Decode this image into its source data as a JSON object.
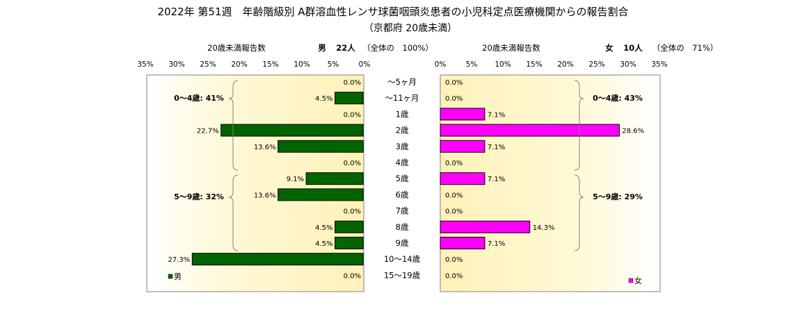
{
  "title": "2022年 第51週　年齢階級別 A群溶血性レンサ球菌咽頭炎患者の小児科定点医療機関からの報告割合",
  "subtitle": "（京都府 20歳未満）",
  "male_header": {
    "report_label": "20歳未満報告数",
    "sex": "男",
    "count": "22人",
    "share": "（全体の　100%）"
  },
  "female_header": {
    "report_label": "20歳未満報告数",
    "sex": "女",
    "count": "10人",
    "share": "（全体の　71%）"
  },
  "male_groups": [
    {
      "label": "0～4歳: 41%"
    },
    {
      "label": "5～9歳: 32%"
    }
  ],
  "female_groups": [
    {
      "label": "0～4歳: 43%"
    },
    {
      "label": "5～9歳: 29%"
    }
  ],
  "colors": {
    "male": "#006400",
    "female": "#ff00ff",
    "background": "#fff6c8"
  },
  "chart_data": {
    "type": "bar",
    "title": "2022年 第51週　年齢階級別 A群溶血性レンサ球菌咽頭炎患者の小児科定点医療機関からの報告割合",
    "subtitle": "（京都府 20歳未満）",
    "categories": [
      "～5ヶ月",
      "～11ヶ月",
      "1歳",
      "2歳",
      "3歳",
      "4歳",
      "5歳",
      "6歳",
      "7歳",
      "8歳",
      "9歳",
      "10～14歳",
      "15～19歳"
    ],
    "series": [
      {
        "name": "男",
        "values": [
          0.0,
          4.5,
          0.0,
          22.7,
          13.6,
          0.0,
          9.1,
          13.6,
          0.0,
          4.5,
          4.5,
          27.3,
          0.0
        ],
        "labels": [
          "0.0%",
          "4.5%",
          "0.0%",
          "22.7%",
          "13.6%",
          "0.0%",
          "9.1%",
          "13.6%",
          "0.0%",
          "4.5%",
          "4.5%",
          "27.3%",
          "0.0%"
        ]
      },
      {
        "name": "女",
        "values": [
          0.0,
          0.0,
          7.1,
          28.6,
          7.1,
          0.0,
          7.1,
          0.0,
          0.0,
          14.3,
          7.1,
          0.0,
          0.0
        ],
        "labels": [
          "0.0%",
          "0.0%",
          "7.1%",
          "28.6%",
          "7.1%",
          "0.0%",
          "7.1%",
          "0.0%",
          "0.0%",
          "14.3%",
          "7.1%",
          "0.0%",
          "0.0%"
        ]
      }
    ],
    "xlim": [
      0,
      35
    ],
    "ticks": [
      "0%",
      "5%",
      "10%",
      "15%",
      "20%",
      "25%",
      "30%",
      "35%"
    ],
    "legend": "bottom-left (男), bottom-right (女)",
    "grid": false
  }
}
